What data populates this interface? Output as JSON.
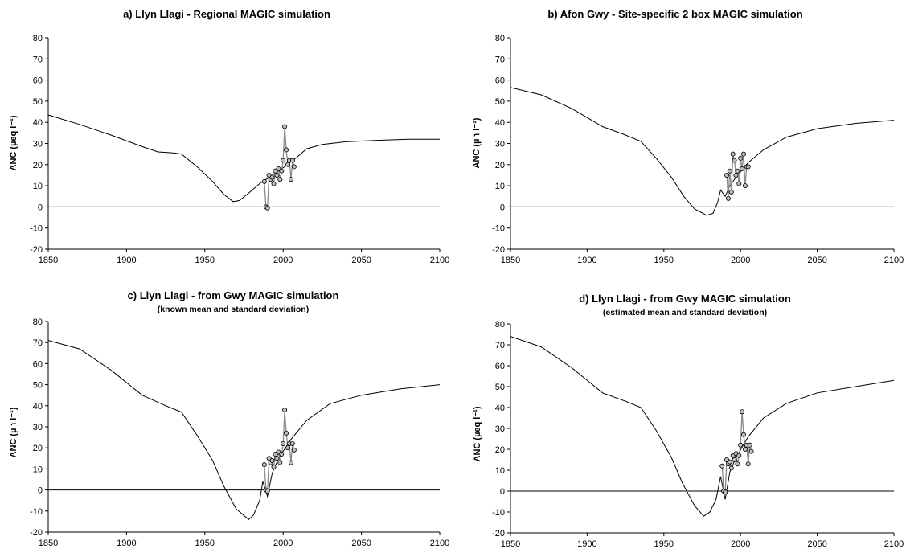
{
  "figure": {
    "panels": [
      {
        "title": "a) Llyn Llagi - Regional MAGIC simulation",
        "subtitle": "",
        "ylabel": "ANC (µeq l⁻¹)"
      },
      {
        "title": "b) Afon Gwy - Site-specific 2 box MAGIC simulation",
        "subtitle": "",
        "ylabel": "ANC (µ  ℩ l⁻¹)"
      },
      {
        "title": "c) Llyn Llagi - from Gwy MAGIC simulation",
        "subtitle": "(known mean and standard deviation)",
        "ylabel": "ANC (µ  ℩ l⁻¹)"
      },
      {
        "title": "d) Llyn Llagi - from Gwy MAGIC simulation",
        "subtitle": "(estimated mean and standard deviation)",
        "ylabel": "ANC (µeq l⁻¹)"
      }
    ]
  },
  "chart_data": [
    {
      "type": "line",
      "title": "a) Llyn Llagi - Regional MAGIC simulation",
      "xlabel": "",
      "ylabel": "ANC (µeq l⁻¹)",
      "xlim": [
        1850,
        2100
      ],
      "ylim": [
        -20,
        80
      ],
      "xticks": [
        1850,
        1900,
        1950,
        2000,
        2050,
        2100
      ],
      "yticks": [
        -20,
        -10,
        0,
        10,
        20,
        30,
        40,
        50,
        60,
        70,
        80
      ],
      "grid": false,
      "series": [
        {
          "kind": "simulated",
          "x": [
            1850,
            1870,
            1890,
            1910,
            1920,
            1930,
            1935,
            1945,
            1955,
            1962,
            1968,
            1972,
            1978,
            1985,
            1992,
            2000,
            2008,
            2015,
            2025,
            2040,
            2060,
            2080,
            2100
          ],
          "y": [
            43.5,
            39,
            34,
            28.5,
            26,
            25.5,
            25,
            19,
            12,
            6,
            2.5,
            3,
            6.5,
            11,
            14.5,
            18.5,
            23,
            27.5,
            29.5,
            30.8,
            31.5,
            32,
            32
          ]
        },
        {
          "kind": "observed",
          "x": [
            1988,
            1989,
            1990,
            1991,
            1992,
            1993,
            1994,
            1995,
            1996,
            1997,
            1998,
            1999,
            2000,
            2001,
            2002,
            2003,
            2004,
            2005,
            2006,
            2007
          ],
          "y": [
            12,
            0,
            -0.5,
            15,
            13,
            14,
            11,
            17,
            15,
            18,
            13,
            17,
            22,
            38,
            27,
            20,
            22,
            13,
            22,
            19
          ]
        }
      ]
    },
    {
      "type": "line",
      "title": "b) Afon Gwy - Site-specific 2 box MAGIC simulation",
      "xlabel": "",
      "ylabel": "ANC (µ  ℩ l⁻¹)",
      "xlim": [
        1850,
        2100
      ],
      "ylim": [
        -20,
        80
      ],
      "xticks": [
        1850,
        1900,
        1950,
        2000,
        2050,
        2100
      ],
      "yticks": [
        -20,
        -10,
        0,
        10,
        20,
        30,
        40,
        50,
        60,
        70,
        80
      ],
      "grid": false,
      "series": [
        {
          "kind": "simulated",
          "x": [
            1850,
            1870,
            1890,
            1910,
            1925,
            1935,
            1945,
            1955,
            1963,
            1970,
            1978,
            1982,
            1985,
            1987,
            1990,
            1993,
            1997,
            2005,
            2015,
            2030,
            2050,
            2075,
            2100
          ],
          "y": [
            56.5,
            53,
            46.5,
            38,
            34,
            31,
            23,
            14,
            5,
            -1,
            -4,
            -3,
            2,
            8,
            5,
            10,
            14,
            21,
            27,
            33,
            37,
            39.5,
            41
          ]
        },
        {
          "kind": "observed",
          "x": [
            1991,
            1992,
            1993,
            1994,
            1995,
            1996,
            1997,
            1998,
            1999,
            2000,
            2001,
            2002,
            2003,
            2004,
            2005
          ],
          "y": [
            15,
            4,
            17,
            7,
            25,
            22,
            15,
            17,
            11,
            23,
            18,
            25,
            10,
            19,
            19
          ]
        }
      ]
    },
    {
      "type": "line",
      "title": "c) Llyn Llagi - from Gwy MAGIC simulation",
      "subtitle": "(known mean and standard deviation)",
      "xlabel": "",
      "ylabel": "ANC (µ  ℩ l⁻¹)",
      "xlim": [
        1850,
        2100
      ],
      "ylim": [
        -20,
        80
      ],
      "xticks": [
        1850,
        1900,
        1950,
        2000,
        2050,
        2100
      ],
      "yticks": [
        -20,
        -10,
        0,
        10,
        20,
        30,
        40,
        50,
        60,
        70,
        80
      ],
      "grid": false,
      "series": [
        {
          "kind": "simulated",
          "x": [
            1850,
            1870,
            1890,
            1910,
            1925,
            1935,
            1945,
            1955,
            1962,
            1970,
            1978,
            1981,
            1985,
            1987,
            1990,
            1993,
            1997,
            2005,
            2015,
            2030,
            2050,
            2075,
            2100
          ],
          "y": [
            71,
            67,
            57,
            45,
            40,
            37,
            26,
            14,
            2,
            -9,
            -14,
            -12,
            -5,
            4,
            -3,
            8,
            15,
            24,
            33,
            41,
            45,
            48,
            50
          ]
        },
        {
          "kind": "observed",
          "x": [
            1988,
            1989,
            1990,
            1991,
            1992,
            1993,
            1994,
            1995,
            1996,
            1997,
            1998,
            1999,
            2000,
            2001,
            2002,
            2003,
            2004,
            2005,
            2006,
            2007
          ],
          "y": [
            12,
            0,
            -0.5,
            15,
            13,
            14,
            11,
            17,
            15,
            18,
            13,
            17,
            22,
            38,
            27,
            20,
            22,
            13,
            22,
            19
          ]
        }
      ]
    },
    {
      "type": "line",
      "title": "d) Llyn Llagi - from Gwy MAGIC simulation",
      "subtitle": "(estimated mean and standard deviation)",
      "xlabel": "",
      "ylabel": "ANC (µeq l⁻¹)",
      "xlim": [
        1850,
        2100
      ],
      "ylim": [
        -20,
        80
      ],
      "xticks": [
        1850,
        1900,
        1950,
        2000,
        2050,
        2100
      ],
      "yticks": [
        -20,
        -10,
        0,
        10,
        20,
        30,
        40,
        50,
        60,
        70,
        80
      ],
      "grid": false,
      "series": [
        {
          "kind": "simulated",
          "x": [
            1850,
            1870,
            1890,
            1910,
            1925,
            1935,
            1945,
            1955,
            1962,
            1970,
            1976,
            1980,
            1984,
            1987,
            1990,
            1993,
            1997,
            2005,
            2015,
            2030,
            2050,
            2075,
            2100
          ],
          "y": [
            74,
            69,
            59,
            47,
            43,
            40,
            29,
            16,
            4,
            -7,
            -12,
            -10,
            -4,
            7,
            -4,
            9,
            16,
            26,
            35,
            42,
            47,
            50,
            53
          ]
        },
        {
          "kind": "observed",
          "x": [
            1988,
            1989,
            1990,
            1991,
            1992,
            1993,
            1994,
            1995,
            1996,
            1997,
            1998,
            1999,
            2000,
            2001,
            2002,
            2003,
            2004,
            2005,
            2006,
            2007
          ],
          "y": [
            12,
            0,
            -0.5,
            15,
            13,
            14,
            11,
            17,
            15,
            18,
            13,
            17,
            22,
            38,
            27,
            20,
            22,
            13,
            22,
            19
          ]
        }
      ]
    }
  ]
}
